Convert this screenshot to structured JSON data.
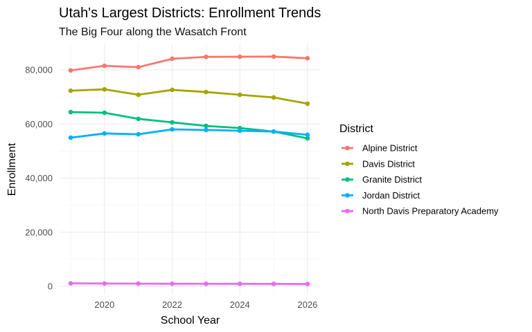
{
  "chart_data": {
    "type": "line",
    "title": "Utah's Largest Districts: Enrollment Trends",
    "subtitle": "The Big Four along the Wasatch Front",
    "xlabel": "School Year",
    "ylabel": "Enrollment",
    "x": [
      2019,
      2020,
      2021,
      2022,
      2023,
      2024,
      2025,
      2026
    ],
    "xticks": [
      "2020",
      "2022",
      "2024",
      "2026"
    ],
    "yticks": [
      "0",
      "20,000",
      "40,000",
      "60,000",
      "80,000"
    ],
    "xlim": [
      2018.8,
      2026.4
    ],
    "ylim": [
      -2000,
      90000
    ],
    "grid": true,
    "legend_title": "District",
    "legend_position": "right",
    "series": [
      {
        "name": "Alpine District",
        "color": "#F8766D",
        "values": [
          79800,
          81500,
          81000,
          84100,
          84800,
          84850,
          84900,
          84300
        ]
      },
      {
        "name": "Davis District",
        "color": "#A3A500",
        "values": [
          72300,
          72800,
          70800,
          72600,
          71800,
          70800,
          69800,
          67500
        ]
      },
      {
        "name": "Granite District",
        "color": "#00BF7D",
        "values": [
          64400,
          64150,
          61900,
          60600,
          59300,
          58500,
          57200,
          54700
        ]
      },
      {
        "name": "Jordan District",
        "color": "#00B0F6",
        "values": [
          54950,
          56500,
          56200,
          58000,
          57800,
          57500,
          57200,
          56000
        ]
      },
      {
        "name": "North Davis Preparatory Academy",
        "color": "#E76BF3",
        "values": [
          1100,
          1050,
          1000,
          980,
          950,
          940,
          920,
          880
        ]
      }
    ]
  }
}
